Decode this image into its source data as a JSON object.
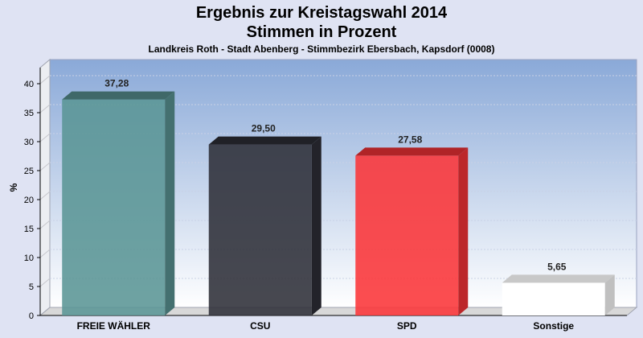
{
  "header": {
    "title": "Ergebnis zur Kreistagswahl 2014",
    "subtitle": "Stimmen in Prozent",
    "description": "Landkreis Roth - Stadt Abenberg - Stimmbezirk Ebersbach, Kapsdorf (0008)"
  },
  "chart_data": {
    "type": "bar",
    "title": "Ergebnis zur Kreistagswahl 2014",
    "subtitle": "Stimmen in Prozent",
    "xlabel": "",
    "ylabel": "%",
    "ylim": [
      0,
      40
    ],
    "yticks": [
      "0",
      "5",
      "10",
      "15",
      "20",
      "25",
      "30",
      "35",
      "40"
    ],
    "grid": true,
    "categories": [
      "FREIE WÄHLER",
      "CSU",
      "SPD",
      "Sonstige"
    ],
    "values": [
      37.28,
      29.5,
      27.58,
      5.65
    ],
    "value_labels": [
      "37,28",
      "29,50",
      "27,58",
      "5,65"
    ],
    "colors": [
      "#5a9595",
      "#2e2f38",
      "#fb3438",
      "#ffffff"
    ]
  }
}
